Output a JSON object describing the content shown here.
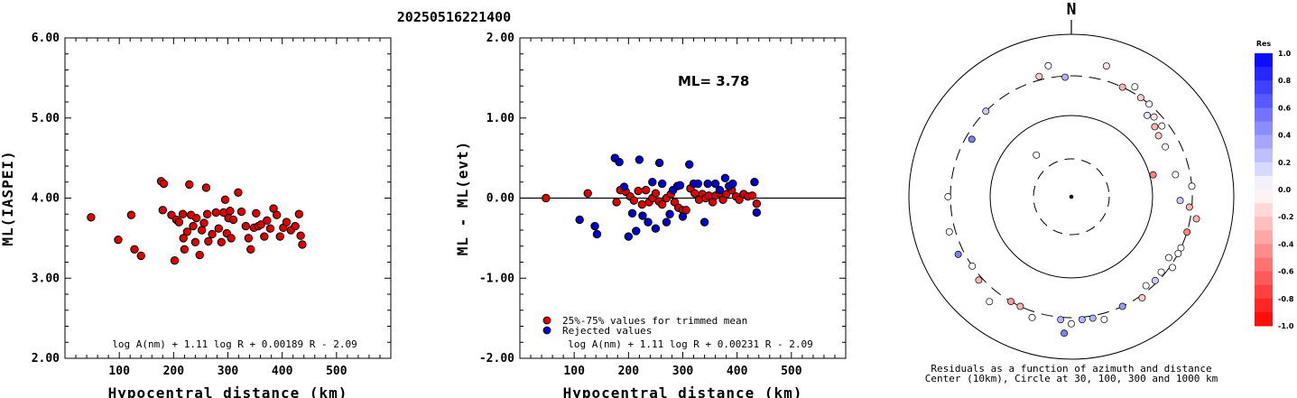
{
  "title": "20250516221400",
  "chart_data": [
    {
      "type": "scatter",
      "xlabel": "Hypocentral distance (km)",
      "ylabel": "ML(IASPEI)",
      "xlim": [
        0,
        600
      ],
      "ylim": [
        2.0,
        6.0
      ],
      "xticks": [
        "100",
        "200",
        "300",
        "400",
        "500"
      ],
      "yticks": [
        "2.00",
        "3.00",
        "4.00",
        "5.00",
        "6.00"
      ],
      "formula": "log A(nm) + 1.11 log R + 0.00189 R - 2.09",
      "series": [
        {
          "color": "#dd0000",
          "points": [
            [
              48,
              3.76
            ],
            [
              98,
              3.48
            ],
            [
              122,
              3.79
            ],
            [
              128,
              3.36
            ],
            [
              140,
              3.28
            ],
            [
              177,
              4.21
            ],
            [
              182,
              4.18
            ],
            [
              180,
              3.85
            ],
            [
              196,
              3.79
            ],
            [
              202,
              3.22
            ],
            [
              205,
              3.73
            ],
            [
              210,
              3.7
            ],
            [
              217,
              3.8
            ],
            [
              218,
              3.5
            ],
            [
              220,
              3.36
            ],
            [
              225,
              3.58
            ],
            [
              229,
              4.17
            ],
            [
              232,
              3.79
            ],
            [
              236,
              3.65
            ],
            [
              240,
              3.45
            ],
            [
              242,
              3.75
            ],
            [
              248,
              3.29
            ],
            [
              252,
              3.6
            ],
            [
              256,
              3.69
            ],
            [
              260,
              4.13
            ],
            [
              262,
              3.8
            ],
            [
              264,
              3.46
            ],
            [
              271,
              3.55
            ],
            [
              278,
              3.82
            ],
            [
              283,
              3.62
            ],
            [
              288,
              3.45
            ],
            [
              292,
              3.82
            ],
            [
              295,
              3.98
            ],
            [
              298,
              3.56
            ],
            [
              301,
              3.75
            ],
            [
              304,
              3.84
            ],
            [
              306,
              3.5
            ],
            [
              310,
              3.73
            ],
            [
              319,
              4.07
            ],
            [
              325,
              3.83
            ],
            [
              333,
              3.65
            ],
            [
              338,
              3.5
            ],
            [
              342,
              3.36
            ],
            [
              348,
              3.63
            ],
            [
              352,
              3.81
            ],
            [
              356,
              3.65
            ],
            [
              361,
              3.67
            ],
            [
              367,
              3.52
            ],
            [
              372,
              3.72
            ],
            [
              378,
              3.62
            ],
            [
              384,
              3.87
            ],
            [
              390,
              3.79
            ],
            [
              396,
              3.52
            ],
            [
              402,
              3.63
            ],
            [
              408,
              3.7
            ],
            [
              416,
              3.6
            ],
            [
              424,
              3.65
            ],
            [
              431,
              3.8
            ],
            [
              434,
              3.53
            ],
            [
              437,
              3.42
            ]
          ]
        }
      ]
    },
    {
      "type": "scatter",
      "xlabel": "Hypocentral distance (km)",
      "ylabel": "ML - ML(evt)",
      "xlim": [
        0,
        600
      ],
      "ylim": [
        -2.0,
        2.0
      ],
      "xticks": [
        "100",
        "200",
        "300",
        "400",
        "500"
      ],
      "yticks": [
        "-2.00",
        "-1.00",
        "0.00",
        "1.00",
        "2.00"
      ],
      "annotation": "ML= 3.78",
      "formula": "log A(nm) + 1.11 log R + 0.00231 R - 2.09",
      "legend": [
        "25%-75% values for trimmed mean",
        "Rejected values"
      ],
      "series": [
        {
          "name": "25%-75% values for trimmed mean",
          "color": "#dd0000",
          "points": [
            [
              48,
              0.0
            ],
            [
              125,
              0.06
            ],
            [
              178,
              -0.05
            ],
            [
              185,
              0.1
            ],
            [
              195,
              0.08
            ],
            [
              203,
              0.02
            ],
            [
              210,
              -0.03
            ],
            [
              218,
              0.09
            ],
            [
              225,
              -0.08
            ],
            [
              232,
              0.1
            ],
            [
              238,
              -0.05
            ],
            [
              244,
              0.0
            ],
            [
              250,
              0.06
            ],
            [
              256,
              -0.04
            ],
            [
              262,
              -0.08
            ],
            [
              270,
              0.0
            ],
            [
              278,
              0.05
            ],
            [
              285,
              -0.05
            ],
            [
              292,
              -0.12
            ],
            [
              300,
              -0.15
            ],
            [
              306,
              -0.15
            ],
            [
              314,
              0.12
            ],
            [
              322,
              0.06
            ],
            [
              330,
              -0.02
            ],
            [
              336,
              0.05
            ],
            [
              342,
              0.0
            ],
            [
              348,
              0.03
            ],
            [
              355,
              -0.05
            ],
            [
              360,
              0.03
            ],
            [
              368,
              0.06
            ],
            [
              374,
              -0.02
            ],
            [
              380,
              0.05
            ],
            [
              390,
              0.1
            ],
            [
              398,
              0.02
            ],
            [
              404,
              -0.02
            ],
            [
              412,
              0.05
            ],
            [
              420,
              0.02
            ],
            [
              428,
              0.03
            ],
            [
              436,
              -0.07
            ]
          ]
        },
        {
          "name": "Rejected values",
          "color": "#0000cc",
          "points": [
            [
              110,
              -0.27
            ],
            [
              138,
              -0.35
            ],
            [
              142,
              -0.45
            ],
            [
              175,
              0.5
            ],
            [
              183,
              0.45
            ],
            [
              192,
              0.14
            ],
            [
              200,
              -0.48
            ],
            [
              207,
              -0.19
            ],
            [
              214,
              -0.41
            ],
            [
              220,
              0.48
            ],
            [
              226,
              -0.22
            ],
            [
              236,
              -0.3
            ],
            [
              244,
              0.2
            ],
            [
              250,
              -0.38
            ],
            [
              257,
              0.44
            ],
            [
              262,
              0.18
            ],
            [
              270,
              -0.3
            ],
            [
              276,
              -0.2
            ],
            [
              282,
              0.1
            ],
            [
              290,
              0.15
            ],
            [
              295,
              0.16
            ],
            [
              300,
              -0.23
            ],
            [
              312,
              0.42
            ],
            [
              320,
              0.18
            ],
            [
              328,
              0.18
            ],
            [
              340,
              -0.3
            ],
            [
              346,
              0.18
            ],
            [
              360,
              0.18
            ],
            [
              368,
              0.1
            ],
            [
              378,
              0.25
            ],
            [
              385,
              0.15
            ],
            [
              392,
              0.18
            ],
            [
              432,
              0.2
            ],
            [
              436,
              -0.18
            ]
          ]
        }
      ]
    },
    {
      "type": "polar",
      "north_label": "N",
      "caption_line1": "Residuals as a function of azimuth and distance",
      "caption_line2": "Center (10km), Circle at 30, 100, 300 and 1000 km",
      "colorbar": {
        "title": "Res",
        "labels": [
          "1.0",
          "0.8",
          "0.6",
          "0.4",
          "0.2",
          "0.0",
          "-0.2",
          "-0.4",
          "-0.6",
          "-0.8",
          "-1.0"
        ],
        "positive_color": "#0000ff",
        "negative_color": "#ff0000"
      },
      "stations": [
        [
          -3,
          0.99,
          0.3
        ],
        [
          15,
          1.12,
          -0.1
        ],
        [
          -15,
          1.03,
          -0.2
        ],
        [
          25,
          1.0,
          -0.3
        ],
        [
          30,
          1.05,
          0.0
        ],
        [
          35,
          1.0,
          -0.2
        ],
        [
          40,
          1.0,
          0.0
        ],
        [
          43,
          0.92,
          0.1
        ],
        [
          46,
          0.95,
          -0.1
        ],
        [
          50,
          0.9,
          -0.3
        ],
        [
          52,
          0.95,
          0.0
        ],
        [
          55,
          0.88,
          -0.2
        ],
        [
          62,
          0.88,
          0.0
        ],
        [
          75,
          0.7,
          -0.5
        ],
        [
          78,
          0.88,
          0.0
        ],
        [
          85,
          1.0,
          0.0
        ],
        [
          92,
          0.9,
          0.2
        ],
        [
          95,
          0.98,
          -0.3
        ],
        [
          100,
          1.05,
          -0.3
        ],
        [
          107,
          1.0,
          -0.5
        ],
        [
          115,
          1.0,
          0.0
        ],
        [
          118,
          1.0,
          0.0
        ],
        [
          122,
          0.95,
          0.0
        ],
        [
          125,
          1.02,
          0.0
        ],
        [
          130,
          0.97,
          0.0
        ],
        [
          135,
          0.98,
          0.2
        ],
        [
          140,
          0.96,
          0.0
        ],
        [
          145,
          1.02,
          -0.2
        ],
        [
          155,
          1.0,
          0.4
        ],
        [
          165,
          1.05,
          0.0
        ],
        [
          170,
          1.02,
          0.3
        ],
        [
          175,
          1.02,
          0.3
        ],
        [
          180,
          1.05,
          0.0
        ],
        [
          183,
          1.13,
          0.5
        ],
        [
          185,
          1.02,
          0.3
        ],
        [
          198,
          1.05,
          0.0
        ],
        [
          205,
          1.0,
          -0.3
        ],
        [
          210,
          1.0,
          -0.4
        ],
        [
          218,
          1.1,
          0.0
        ],
        [
          228,
          1.03,
          -0.3
        ],
        [
          235,
          1.0,
          0.0
        ],
        [
          243,
          1.05,
          0.5
        ],
        [
          254,
          1.05,
          0.0
        ],
        [
          270,
          1.02,
          0.0
        ],
        [
          300,
          0.95,
          0.5
        ],
        [
          315,
          1.0,
          0.2
        ],
        [
          320,
          0.45,
          0.0
        ],
        [
          350,
          1.1,
          0.0
        ]
      ]
    }
  ]
}
